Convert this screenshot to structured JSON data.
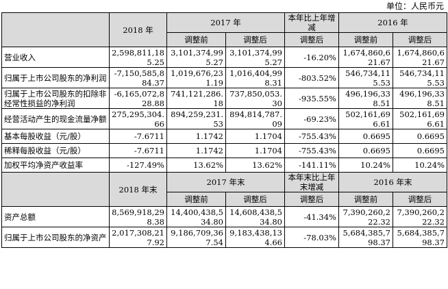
{
  "unit_label": "单位：人民币元",
  "income_header": {
    "year_2018": "2018 年",
    "year_2017": "2017 年",
    "change": "本年比上年增减",
    "year_2016": "2016 年",
    "before": "调整前",
    "after": "调整后"
  },
  "income_rows": [
    {
      "label": "营业收入",
      "v2018": "2,598,811,185.25",
      "v2017b": "3,101,374,995.27",
      "v2017a": "3,101,374,995.27",
      "chg": "-16.20%",
      "v2016b": "1,674,860,621.67",
      "v2016a": "1,674,860,621.67"
    },
    {
      "label": "归属于上市公司股东的净利润",
      "v2018": "-7,150,585,884.37",
      "v2017b": "1,019,676,231.19",
      "v2017a": "1,016,404,998.31",
      "chg": "-803.52%",
      "v2016b": "546,734,115.53",
      "v2016a": "546,734,115.53"
    },
    {
      "label": "归属于上市公司股东的扣除非经常性损益的净利润",
      "v2018": "-6,165,072,828.88",
      "v2017b": "741,121,286.18",
      "v2017a": "737,850,053.30",
      "chg": "-935.55%",
      "v2016b": "496,196,338.51",
      "v2016a": "496,196,338.51"
    },
    {
      "label": "经营活动产生的现金流量净额",
      "v2018": "275,295,304.66",
      "v2017b": "894,259,231.53",
      "v2017a": "894,814,787.09",
      "chg": "-69.23%",
      "v2016b": "502,161,696.61",
      "v2016a": "502,161,696.61"
    },
    {
      "label": "基本每股收益（元/股）",
      "v2018": "-7.6711",
      "v2017b": "1.1742",
      "v2017a": "1.1704",
      "chg": "-755.43%",
      "v2016b": "0.6695",
      "v2016a": "0.6695"
    },
    {
      "label": "稀释每股收益（元/股）",
      "v2018": "-7.6711",
      "v2017b": "1.1742",
      "v2017a": "1.1704",
      "chg": "-755.43%",
      "v2016b": "0.6695",
      "v2016a": "0.6695"
    },
    {
      "label": "加权平均净资产收益率",
      "v2018": "-127.49%",
      "v2017b": "13.62%",
      "v2017a": "13.62%",
      "chg": "-141.11%",
      "v2016b": "10.24%",
      "v2016a": "10.24%"
    }
  ],
  "balance_header": {
    "year_2018": "2018 年末",
    "year_2017": "2017 年末",
    "change": "本年末比上年末增减",
    "year_2016": "2016 年末",
    "before": "调整前",
    "after": "调整后"
  },
  "balance_rows": [
    {
      "label": "资产总额",
      "v2018": "8,569,918,298.38",
      "v2017b": "14,400,438,534.80",
      "v2017a": "14,608,438,534.80",
      "chg": "-41.34%",
      "v2016b": "7,390,260,222.32",
      "v2016a": "7,390,260,222.32"
    },
    {
      "label": "归属于上市公司股东的净资产",
      "v2018": "2,017,308,217.92",
      "v2017b": "9,186,709,367.54",
      "v2017a": "9,183,438,134.66",
      "chg": "-78.03%",
      "v2016b": "5,684,385,798.37",
      "v2016a": "5,684,385,798.37"
    }
  ]
}
